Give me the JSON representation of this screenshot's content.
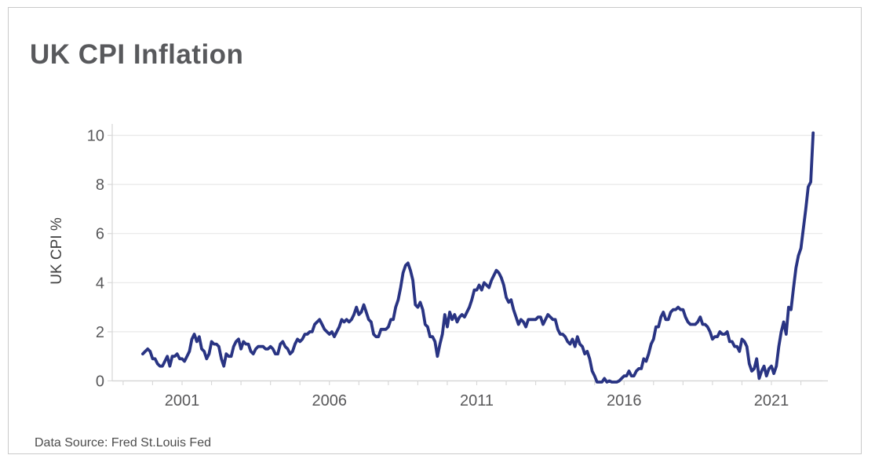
{
  "chart": {
    "title": "UK CPI Inflation",
    "source_note": "Data Source: Fred St.Louis Fed",
    "colors": {
      "line": "#293483",
      "grid": "#e8e8e8",
      "spine": "#d4d4d4",
      "tick": "#d9d9d9",
      "tick_label": "#58585a",
      "title_text": "#58595c",
      "border": "#c9c9c9",
      "background": "#ffffff"
    }
  },
  "chart_data": {
    "type": "line",
    "title": "UK CPI Inflation",
    "xlabel": "",
    "ylabel": "UK CPI %",
    "source": "Data Source: Fred St.Louis Fed",
    "grid": "horizontal",
    "legend": "none",
    "ylim": [
      0,
      10
    ],
    "y_ticks": [
      0,
      2,
      4,
      6,
      8,
      10
    ],
    "x_ticks": [
      2001,
      2006,
      2011,
      2016,
      2021
    ],
    "x_minor_tick_years": [
      1999,
      2022
    ],
    "series": [
      {
        "name": "UK CPI %",
        "unit": "percent",
        "frequency": "monthly",
        "x_start_decimal_year": 1999.6667,
        "x_end_decimal_year": 2022.4167,
        "values": [
          1.1,
          1.2,
          1.3,
          1.2,
          0.9,
          0.9,
          0.7,
          0.6,
          0.6,
          0.8,
          1.0,
          0.6,
          1.0,
          1.0,
          1.1,
          0.9,
          0.9,
          0.8,
          1.0,
          1.2,
          1.7,
          1.9,
          1.6,
          1.8,
          1.3,
          1.2,
          0.9,
          1.1,
          1.6,
          1.5,
          1.5,
          1.4,
          0.9,
          0.6,
          1.1,
          1.0,
          1.0,
          1.4,
          1.6,
          1.7,
          1.3,
          1.6,
          1.5,
          1.5,
          1.2,
          1.1,
          1.3,
          1.4,
          1.4,
          1.4,
          1.3,
          1.3,
          1.4,
          1.3,
          1.1,
          1.1,
          1.5,
          1.6,
          1.4,
          1.3,
          1.1,
          1.2,
          1.5,
          1.7,
          1.6,
          1.7,
          1.9,
          1.9,
          2.0,
          2.0,
          2.3,
          2.4,
          2.5,
          2.3,
          2.1,
          2.0,
          1.9,
          2.0,
          1.8,
          2.0,
          2.2,
          2.5,
          2.4,
          2.5,
          2.4,
          2.5,
          2.7,
          3.0,
          2.7,
          2.8,
          3.1,
          2.8,
          2.5,
          2.4,
          1.9,
          1.8,
          1.8,
          2.1,
          2.1,
          2.1,
          2.2,
          2.5,
          2.5,
          3.0,
          3.3,
          3.8,
          4.4,
          4.7,
          4.8,
          4.5,
          4.1,
          3.1,
          3.0,
          3.2,
          2.9,
          2.3,
          2.2,
          1.8,
          1.8,
          1.6,
          1.0,
          1.5,
          1.9,
          2.7,
          2.2,
          2.8,
          2.5,
          2.7,
          2.4,
          2.6,
          2.7,
          2.6,
          2.8,
          3.0,
          3.3,
          3.7,
          3.7,
          3.9,
          3.7,
          4.0,
          3.9,
          3.8,
          4.1,
          4.3,
          4.5,
          4.4,
          4.2,
          3.9,
          3.4,
          3.2,
          3.3,
          2.9,
          2.6,
          2.3,
          2.5,
          2.4,
          2.2,
          2.5,
          2.5,
          2.5,
          2.5,
          2.6,
          2.6,
          2.3,
          2.5,
          2.7,
          2.6,
          2.5,
          2.5,
          2.1,
          1.9,
          1.9,
          1.8,
          1.6,
          1.5,
          1.7,
          1.4,
          1.8,
          1.5,
          1.4,
          1.1,
          1.2,
          0.9,
          0.4,
          0.2,
          -0.1,
          -0.1,
          -0.2,
          0.1,
          -0.1,
          0.0,
          -0.1,
          -0.2,
          -0.1,
          0.0,
          0.1,
          0.2,
          0.2,
          0.4,
          0.2,
          0.2,
          0.4,
          0.5,
          0.5,
          0.9,
          0.8,
          1.1,
          1.5,
          1.7,
          2.2,
          2.2,
          2.6,
          2.8,
          2.5,
          2.5,
          2.8,
          2.9,
          2.9,
          3.0,
          2.9,
          2.9,
          2.6,
          2.4,
          2.3,
          2.3,
          2.3,
          2.4,
          2.6,
          2.3,
          2.3,
          2.2,
          2.0,
          1.7,
          1.8,
          1.8,
          2.0,
          1.9,
          1.9,
          2.0,
          1.6,
          1.6,
          1.4,
          1.4,
          1.2,
          1.7,
          1.6,
          1.4,
          0.7,
          0.4,
          0.5,
          0.9,
          0.1,
          0.4,
          0.6,
          0.2,
          0.5,
          0.6,
          0.3,
          0.6,
          1.4,
          2.0,
          2.4,
          1.9,
          3.0,
          2.9,
          3.8,
          4.6,
          5.1,
          5.4,
          6.2,
          7.0,
          7.9,
          8.1,
          10.1
        ]
      }
    ]
  }
}
